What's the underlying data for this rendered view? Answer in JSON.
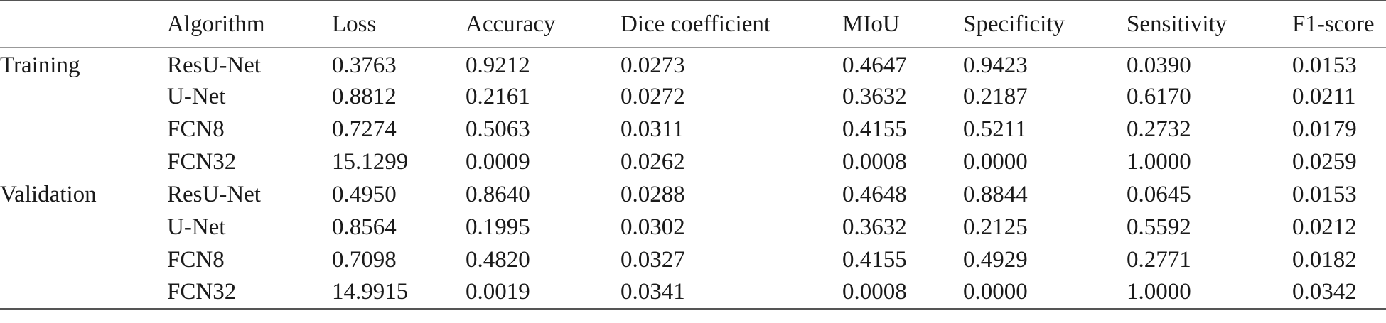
{
  "table": {
    "headers": [
      "",
      "Algorithm",
      "Loss",
      "Accuracy",
      "Dice coefficient",
      "MIoU",
      "Specificity",
      "Sensitivity",
      "F1-score"
    ],
    "groups": [
      {
        "label": "Training",
        "rows": [
          {
            "algorithm": "ResU-Net",
            "loss": "0.3763",
            "accuracy": "0.9212",
            "dice": "0.0273",
            "miou": "0.4647",
            "specificity": "0.9423",
            "sensitivity": "0.0390",
            "f1": "0.0153"
          },
          {
            "algorithm": "U-Net",
            "loss": "0.8812",
            "accuracy": "0.2161",
            "dice": "0.0272",
            "miou": "0.3632",
            "specificity": "0.2187",
            "sensitivity": "0.6170",
            "f1": "0.0211"
          },
          {
            "algorithm": "FCN8",
            "loss": "0.7274",
            "accuracy": "0.5063",
            "dice": "0.0311",
            "miou": "0.4155",
            "specificity": "0.5211",
            "sensitivity": "0.2732",
            "f1": "0.0179"
          },
          {
            "algorithm": "FCN32",
            "loss": "15.1299",
            "accuracy": "0.0009",
            "dice": "0.0262",
            "miou": "0.0008",
            "specificity": "0.0000",
            "sensitivity": "1.0000",
            "f1": "0.0259"
          }
        ]
      },
      {
        "label": "Validation",
        "rows": [
          {
            "algorithm": "ResU-Net",
            "loss": "0.4950",
            "accuracy": "0.8640",
            "dice": "0.0288",
            "miou": "0.4648",
            "specificity": "0.8844",
            "sensitivity": "0.0645",
            "f1": "0.0153"
          },
          {
            "algorithm": "U-Net",
            "loss": "0.8564",
            "accuracy": "0.1995",
            "dice": "0.0302",
            "miou": "0.3632",
            "specificity": "0.2125",
            "sensitivity": "0.5592",
            "f1": "0.0212"
          },
          {
            "algorithm": "FCN8",
            "loss": "0.7098",
            "accuracy": "0.4820",
            "dice": "0.0327",
            "miou": "0.4155",
            "specificity": "0.4929",
            "sensitivity": "0.2771",
            "f1": "0.0182"
          },
          {
            "algorithm": "FCN32",
            "loss": "14.9915",
            "accuracy": "0.0019",
            "dice": "0.0341",
            "miou": "0.0008",
            "specificity": "0.0000",
            "sensitivity": "1.0000",
            "f1": "0.0342"
          }
        ]
      }
    ]
  }
}
